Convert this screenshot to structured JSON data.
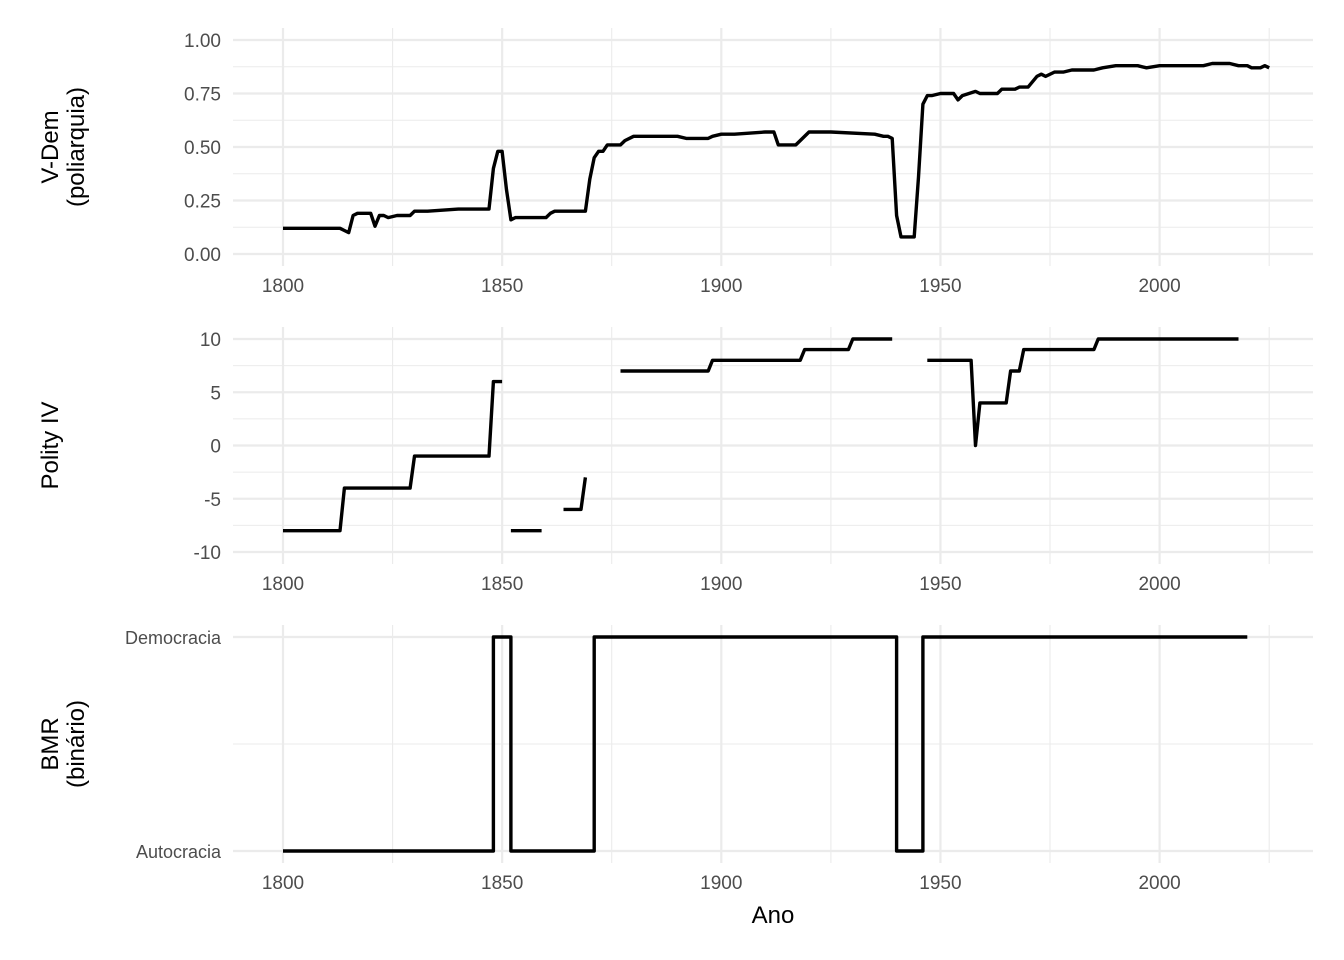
{
  "chart_data": [
    {
      "id": "vdem",
      "type": "line",
      "ylabel": [
        "V-Dem",
        "(poliarquia)"
      ],
      "xlabel": "",
      "xlim": [
        1790,
        2030
      ],
      "ylim": [
        0,
        1
      ],
      "x_ticks": [
        1800,
        1850,
        1900,
        1950,
        2000
      ],
      "y_ticks": [
        0.0,
        0.25,
        0.5,
        0.75,
        1.0
      ],
      "y_tick_labels": [
        "0.00",
        "0.25",
        "0.50",
        "0.75",
        "1.00"
      ],
      "grid": true,
      "segments": [
        [
          [
            1800,
            0.12
          ],
          [
            1813,
            0.12
          ],
          [
            1814,
            0.11
          ],
          [
            1815,
            0.1
          ],
          [
            1816,
            0.18
          ],
          [
            1817,
            0.19
          ],
          [
            1820,
            0.19
          ],
          [
            1821,
            0.13
          ],
          [
            1822,
            0.18
          ],
          [
            1823,
            0.18
          ],
          [
            1824,
            0.17
          ],
          [
            1826,
            0.18
          ],
          [
            1828,
            0.18
          ],
          [
            1829,
            0.18
          ],
          [
            1830,
            0.2
          ],
          [
            1833,
            0.2
          ],
          [
            1840,
            0.21
          ],
          [
            1843,
            0.21
          ],
          [
            1847,
            0.21
          ],
          [
            1848,
            0.4
          ],
          [
            1849,
            0.48
          ],
          [
            1850,
            0.48
          ],
          [
            1851,
            0.3
          ],
          [
            1852,
            0.16
          ],
          [
            1853,
            0.17
          ],
          [
            1860,
            0.17
          ],
          [
            1861,
            0.19
          ],
          [
            1862,
            0.2
          ],
          [
            1869,
            0.2
          ],
          [
            1870,
            0.35
          ],
          [
            1871,
            0.45
          ],
          [
            1872,
            0.48
          ],
          [
            1873,
            0.48
          ],
          [
            1874,
            0.51
          ],
          [
            1877,
            0.51
          ],
          [
            1878,
            0.53
          ],
          [
            1880,
            0.55
          ],
          [
            1885,
            0.55
          ],
          [
            1890,
            0.55
          ],
          [
            1892,
            0.54
          ],
          [
            1897,
            0.54
          ],
          [
            1898,
            0.55
          ],
          [
            1900,
            0.56
          ],
          [
            1903,
            0.56
          ],
          [
            1910,
            0.57
          ],
          [
            1912,
            0.57
          ],
          [
            1913,
            0.51
          ],
          [
            1917,
            0.51
          ],
          [
            1918,
            0.53
          ],
          [
            1920,
            0.57
          ],
          [
            1925,
            0.57
          ],
          [
            1935,
            0.56
          ],
          [
            1937,
            0.55
          ],
          [
            1938,
            0.55
          ],
          [
            1939,
            0.54
          ],
          [
            1940,
            0.18
          ],
          [
            1941,
            0.08
          ],
          [
            1944,
            0.08
          ],
          [
            1945,
            0.36
          ],
          [
            1946,
            0.7
          ],
          [
            1947,
            0.74
          ],
          [
            1948,
            0.74
          ],
          [
            1950,
            0.75
          ],
          [
            1953,
            0.75
          ],
          [
            1954,
            0.72
          ],
          [
            1955,
            0.74
          ],
          [
            1958,
            0.76
          ],
          [
            1959,
            0.75
          ],
          [
            1963,
            0.75
          ],
          [
            1964,
            0.77
          ],
          [
            1967,
            0.77
          ],
          [
            1968,
            0.78
          ],
          [
            1970,
            0.78
          ],
          [
            1972,
            0.83
          ],
          [
            1973,
            0.84
          ],
          [
            1974,
            0.83
          ],
          [
            1976,
            0.85
          ],
          [
            1978,
            0.85
          ],
          [
            1980,
            0.86
          ],
          [
            1985,
            0.86
          ],
          [
            1987,
            0.87
          ],
          [
            1990,
            0.88
          ],
          [
            1995,
            0.88
          ],
          [
            1997,
            0.87
          ],
          [
            2000,
            0.88
          ],
          [
            2005,
            0.88
          ],
          [
            2010,
            0.88
          ],
          [
            2012,
            0.89
          ],
          [
            2016,
            0.89
          ],
          [
            2018,
            0.88
          ],
          [
            2020,
            0.88
          ],
          [
            2021,
            0.87
          ],
          [
            2023,
            0.87
          ],
          [
            2024,
            0.88
          ],
          [
            2025,
            0.87
          ]
        ]
      ]
    },
    {
      "id": "polity",
      "type": "line",
      "ylabel": [
        "Polity IV"
      ],
      "xlabel": "",
      "xlim": [
        1790,
        2030
      ],
      "ylim": [
        -10,
        10
      ],
      "x_ticks": [
        1800,
        1850,
        1900,
        1950,
        2000
      ],
      "y_ticks": [
        -10,
        -5,
        0,
        5,
        10
      ],
      "y_tick_labels": [
        "-10",
        "-5",
        "0",
        "5",
        "10"
      ],
      "grid": true,
      "segments": [
        [
          [
            1800,
            -8
          ],
          [
            1813,
            -8
          ],
          [
            1814,
            -4
          ],
          [
            1829,
            -4
          ],
          [
            1830,
            -1
          ],
          [
            1847,
            -1
          ],
          [
            1848,
            6
          ],
          [
            1850,
            6
          ]
        ],
        [
          [
            1852,
            -8
          ],
          [
            1859,
            -8
          ]
        ],
        [
          [
            1864,
            -6
          ],
          [
            1868,
            -6
          ],
          [
            1869,
            -3
          ]
        ],
        [
          [
            1877,
            7
          ],
          [
            1897,
            7
          ],
          [
            1898,
            8
          ],
          [
            1918,
            8
          ],
          [
            1919,
            9
          ],
          [
            1929,
            9
          ],
          [
            1930,
            10
          ],
          [
            1939,
            10
          ]
        ],
        [
          [
            1947,
            8
          ],
          [
            1957,
            8
          ],
          [
            1958,
            0
          ],
          [
            1959,
            4
          ],
          [
            1965,
            4
          ],
          [
            1966,
            7
          ],
          [
            1968,
            7
          ],
          [
            1969,
            9
          ],
          [
            1985,
            9
          ],
          [
            1986,
            10
          ],
          [
            2018,
            10
          ]
        ]
      ]
    },
    {
      "id": "bmr",
      "type": "line",
      "ylabel": [
        "BMR",
        "(binário)"
      ],
      "xlabel": "Ano",
      "xlim": [
        1790,
        2030
      ],
      "ylim": [
        0,
        1
      ],
      "x_ticks": [
        1800,
        1850,
        1900,
        1950,
        2000
      ],
      "y_ticks": [
        0,
        1
      ],
      "y_tick_labels": [
        "Autocracia",
        "Democracia"
      ],
      "grid": true,
      "segments": [
        [
          [
            1800,
            0
          ],
          [
            1848,
            0
          ],
          [
            1848,
            1
          ],
          [
            1852,
            1
          ],
          [
            1852,
            0
          ],
          [
            1871,
            0
          ],
          [
            1871,
            1
          ],
          [
            1940,
            1
          ],
          [
            1940,
            0
          ],
          [
            1946,
            0
          ],
          [
            1946,
            1
          ],
          [
            2020,
            1
          ]
        ]
      ]
    }
  ]
}
